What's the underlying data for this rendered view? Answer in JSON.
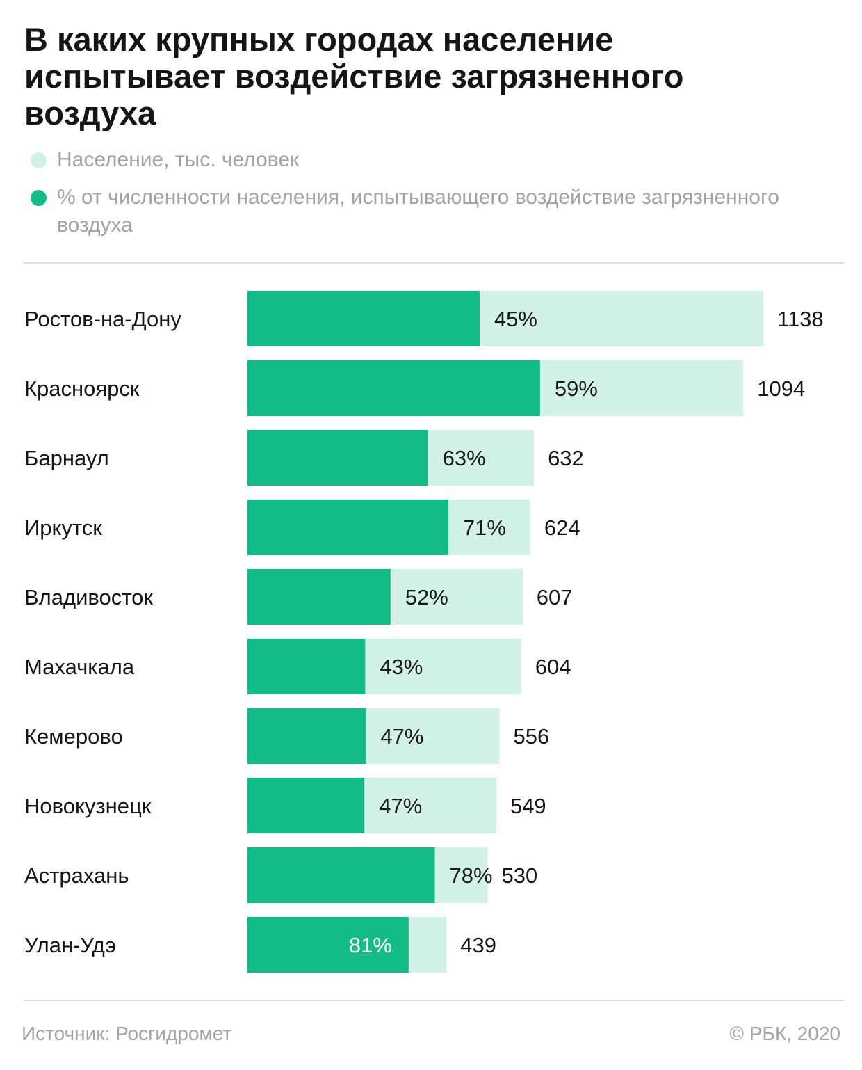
{
  "title": "В каких крупных городах население испытывает воздействие загрязненного воздуха",
  "legend": [
    {
      "label": "Население, тыс. человек",
      "color": "#d3f2e7"
    },
    {
      "label": "% от численности населения, испытывающего воздействие загрязненного воздуха",
      "color": "#13bb87"
    }
  ],
  "footer": {
    "source": "Источник: Росгидромет",
    "copyright": "© РБК, 2020"
  },
  "chart_data": {
    "type": "bar",
    "orientation": "horizontal",
    "categories": [
      "Ростов-на-Дону",
      "Красноярск",
      "Барнаул",
      "Иркутск",
      "Владивосток",
      "Махачкала",
      "Кемерово",
      "Новокузнецк",
      "Астрахань",
      "Улан-Удэ"
    ],
    "series": [
      {
        "name": "Население, тыс. человек",
        "values": [
          1138,
          1094,
          632,
          624,
          607,
          604,
          556,
          549,
          530,
          439
        ],
        "color": "#d3f2e7"
      },
      {
        "name": "% от численности населения, испытывающего воздействие загрязненного воздуха",
        "values": [
          45,
          59,
          63,
          71,
          52,
          43,
          47,
          47,
          78,
          81
        ],
        "color": "#13bb87"
      }
    ],
    "value_labels": [
      "1138",
      "1094",
      "632",
      "624",
      "607",
      "604",
      "556",
      "549",
      "530",
      "439"
    ],
    "percent_labels": [
      "45%",
      "59%",
      "63%",
      "71%",
      "52%",
      "43%",
      "47%",
      "47%",
      "78%",
      "81%"
    ],
    "legend_position": "top-left",
    "grid": false
  }
}
